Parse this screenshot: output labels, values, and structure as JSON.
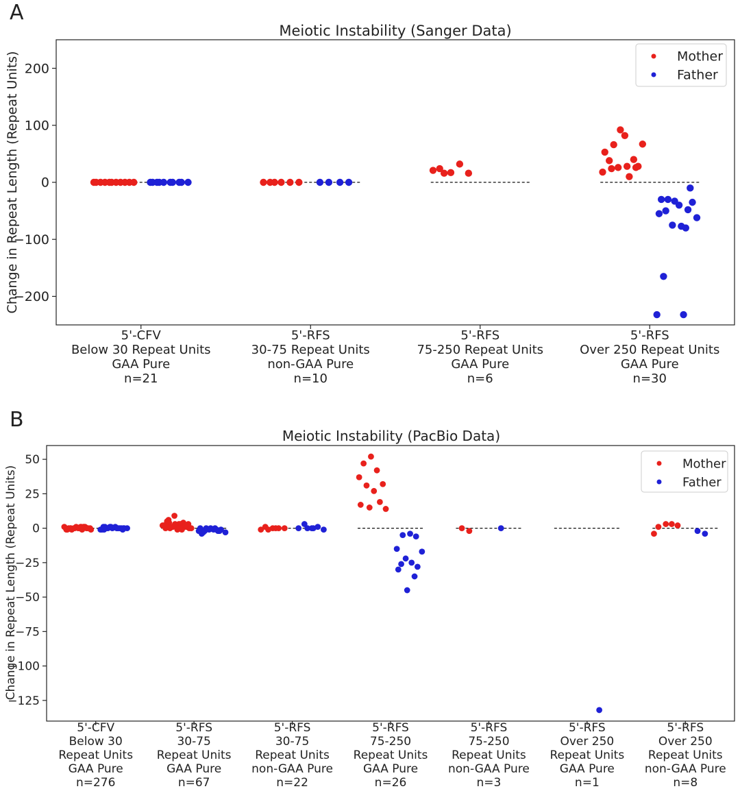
{
  "colors": {
    "mother": "#e8211c",
    "father": "#1f21d6",
    "axis": "#222222"
  },
  "chart_data": [
    {
      "panel_label": "A",
      "type": "scatter",
      "title": "Meiotic Instability (Sanger Data)",
      "ylabel": "Change in Repeat Length (Repeat Units)",
      "ylim": [
        -250,
        250
      ],
      "yticks": [
        200,
        100,
        0,
        -100,
        -200
      ],
      "ytick_labels": [
        "200",
        "100",
        "0",
        "−100",
        "−200"
      ],
      "legend": {
        "position": "top-right",
        "entries": [
          "Mother",
          "Father"
        ]
      },
      "categories": [
        {
          "lines": [
            "5'-CFV",
            "Below 30 Repeat Units",
            "GAA Pure",
            "n=21"
          ],
          "mother": [
            0,
            0,
            0,
            0,
            0,
            0,
            0,
            0,
            0,
            0,
            0
          ],
          "father": [
            0,
            0,
            0,
            0,
            0,
            0,
            0,
            0,
            0,
            0
          ]
        },
        {
          "lines": [
            "5'-RFS",
            "30-75 Repeat Units",
            "non-GAA Pure",
            "n=10"
          ],
          "mother": [
            0,
            0,
            0,
            0,
            0,
            0
          ],
          "father": [
            0,
            0,
            0,
            0
          ]
        },
        {
          "lines": [
            "5'-RFS",
            "75-250 Repeat Units",
            "GAA Pure",
            "n=6"
          ],
          "mother": [
            17,
            24,
            32,
            21,
            16,
            16
          ],
          "father": []
        },
        {
          "lines": [
            "5'-RFS",
            "Over 250 Repeat Units",
            "GAA Pure",
            "n=30"
          ],
          "mother": [
            92,
            38,
            10,
            18,
            28,
            66,
            82,
            40,
            53,
            67,
            26,
            28,
            24,
            26
          ],
          "father": [
            -30,
            -40,
            -48,
            -55,
            -62,
            -75,
            -77,
            -50,
            -10,
            -30,
            -80,
            -33,
            -165,
            -232,
            -232,
            -35
          ]
        }
      ]
    },
    {
      "panel_label": "B",
      "type": "scatter",
      "title": "Meiotic Instability (PacBio Data)",
      "ylabel": "Change in Repeat Length (Repeat Units)",
      "ylim": [
        -140,
        60
      ],
      "yticks": [
        50,
        25,
        0,
        -25,
        -50,
        -75,
        -100,
        -125
      ],
      "ytick_labels": [
        "50",
        "25",
        "0",
        "−25",
        "−50",
        "−75",
        "−100",
        "−125"
      ],
      "legend": {
        "position": "top-right",
        "entries": [
          "Mother",
          "Father"
        ]
      },
      "categories": [
        {
          "lines": [
            "5'-CFV",
            "Below 30",
            "Repeat Units",
            "GAA Pure",
            "n=276"
          ],
          "mother": [
            1,
            0,
            -1,
            1,
            0,
            -1,
            0,
            1,
            0,
            -1,
            0,
            1,
            0,
            0,
            -1,
            1,
            0,
            0,
            1,
            -1,
            0,
            0,
            1,
            0
          ],
          "father": [
            0,
            1,
            0,
            -1,
            0,
            1,
            0,
            0,
            -1,
            1,
            0,
            0,
            1,
            0,
            -1,
            0,
            1,
            0,
            0,
            -1
          ]
        },
        {
          "lines": [
            "5'-RFS",
            "30-75",
            "Repeat Units",
            "GAA Pure",
            "n=67"
          ],
          "mother": [
            9,
            5,
            3,
            2,
            1,
            0,
            -1,
            4,
            2,
            0,
            1,
            3,
            6,
            2,
            0,
            -1,
            1,
            4,
            0,
            2,
            3,
            1,
            0,
            2,
            1,
            0,
            3
          ],
          "father": [
            0,
            -1,
            -2,
            0,
            -3,
            -1,
            0,
            -2,
            -1,
            -4,
            -2,
            0,
            -3,
            -1,
            -2
          ]
        },
        {
          "lines": [
            "5'-RFS",
            "30-75",
            "Repeat Units",
            "non-GAA Pure",
            "n=22"
          ],
          "mother": [
            0,
            1,
            0,
            -1,
            0,
            -1,
            0
          ],
          "father": [
            3,
            0,
            1,
            0,
            -1,
            0,
            0
          ]
        },
        {
          "lines": [
            "5'-RFS",
            "75-250",
            "Repeat Units",
            "GAA Pure",
            "n=26"
          ],
          "mother": [
            52,
            47,
            42,
            37,
            32,
            31,
            27,
            19,
            17,
            14,
            15
          ],
          "father": [
            -5,
            -4,
            -6,
            -15,
            -17,
            -22,
            -25,
            -26,
            -28,
            -30,
            -35,
            -45
          ]
        },
        {
          "lines": [
            "5'-RFS",
            "75-250",
            "Repeat Units",
            "non-GAA Pure",
            "n=3"
          ],
          "mother": [
            -2,
            0
          ],
          "father": [
            0
          ]
        },
        {
          "lines": [
            "5'-RFS",
            "Over 250",
            "Repeat Units",
            "GAA Pure",
            "n=1"
          ],
          "mother": [],
          "father": [
            -132
          ]
        },
        {
          "lines": [
            "5'-RFS",
            "Over 250",
            "Repeat Units",
            "non-GAA Pure",
            "n=8"
          ],
          "mother": [
            3,
            1,
            3,
            -4,
            2
          ],
          "father": [
            -2,
            -4
          ]
        }
      ]
    }
  ]
}
